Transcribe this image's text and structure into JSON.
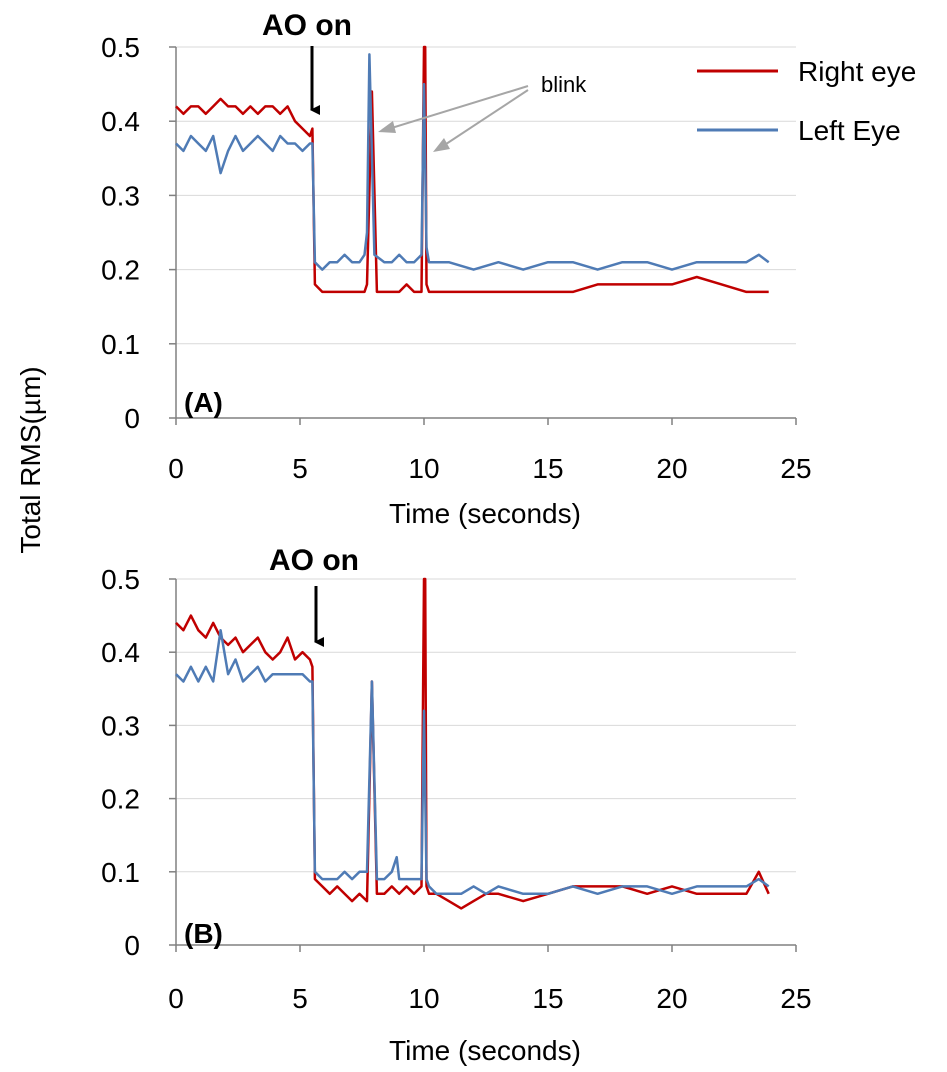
{
  "y_axis_title": "Total RMS(µm)",
  "legend": {
    "position": "top-right",
    "items": [
      {
        "label": "Right eye",
        "color": "#C00000"
      },
      {
        "label": "Left Eye",
        "color": "#4F7BB5"
      }
    ]
  },
  "chart_data": [
    {
      "type": "line",
      "panel_label": "(A)",
      "annotation": "AO on",
      "annotation_x": 5.5,
      "blink_label": "blink",
      "blink_x": [
        7.9,
        10.1
      ],
      "xlabel": "Time (seconds)",
      "xlim": [
        0,
        25
      ],
      "ylim": [
        0,
        0.5
      ],
      "xticks": [
        "0",
        "5",
        "10",
        "15",
        "20",
        "25"
      ],
      "yticks": [
        "0",
        "0.1",
        "0.2",
        "0.3",
        "0.4",
        "0.5"
      ],
      "grid": "horizontal",
      "series": [
        {
          "name": "Right eye",
          "color": "#C00000",
          "x": [
            0,
            0.3,
            0.6,
            0.9,
            1.2,
            1.5,
            1.8,
            2.1,
            2.4,
            2.7,
            3.0,
            3.3,
            3.6,
            3.9,
            4.2,
            4.5,
            4.8,
            5.1,
            5.4,
            5.5,
            5.6,
            5.9,
            6.2,
            6.5,
            6.8,
            7.1,
            7.4,
            7.6,
            7.7,
            7.9,
            8.1,
            8.4,
            8.7,
            9.0,
            9.3,
            9.6,
            9.9,
            10.0,
            10.05,
            10.1,
            10.2,
            10.5,
            11,
            12,
            13,
            14,
            15,
            16,
            17,
            18,
            19,
            20,
            21,
            22,
            23,
            23.5,
            23.9
          ],
          "y": [
            0.42,
            0.41,
            0.42,
            0.42,
            0.41,
            0.42,
            0.43,
            0.42,
            0.42,
            0.41,
            0.42,
            0.41,
            0.42,
            0.42,
            0.41,
            0.42,
            0.4,
            0.39,
            0.38,
            0.39,
            0.18,
            0.17,
            0.17,
            0.17,
            0.17,
            0.17,
            0.17,
            0.17,
            0.18,
            0.44,
            0.17,
            0.17,
            0.17,
            0.17,
            0.18,
            0.17,
            0.17,
            0.5,
            0.5,
            0.18,
            0.17,
            0.17,
            0.17,
            0.17,
            0.17,
            0.17,
            0.17,
            0.17,
            0.18,
            0.18,
            0.18,
            0.18,
            0.19,
            0.18,
            0.17,
            0.17,
            0.17
          ]
        },
        {
          "name": "Left Eye",
          "color": "#4F7BB5",
          "x": [
            0,
            0.3,
            0.6,
            0.9,
            1.2,
            1.5,
            1.8,
            2.1,
            2.4,
            2.7,
            3.0,
            3.3,
            3.6,
            3.9,
            4.2,
            4.5,
            4.8,
            5.1,
            5.4,
            5.5,
            5.6,
            5.9,
            6.2,
            6.5,
            6.8,
            7.1,
            7.4,
            7.6,
            7.7,
            7.8,
            8.0,
            8.4,
            8.7,
            9.0,
            9.3,
            9.6,
            9.9,
            10.0,
            10.1,
            10.2,
            10.5,
            11,
            12,
            13,
            14,
            15,
            16,
            17,
            18,
            19,
            20,
            21,
            22,
            23,
            23.5,
            23.9
          ],
          "y": [
            0.37,
            0.36,
            0.38,
            0.37,
            0.36,
            0.38,
            0.33,
            0.36,
            0.38,
            0.36,
            0.37,
            0.38,
            0.37,
            0.36,
            0.38,
            0.37,
            0.37,
            0.36,
            0.37,
            0.37,
            0.21,
            0.2,
            0.21,
            0.21,
            0.22,
            0.21,
            0.21,
            0.22,
            0.25,
            0.49,
            0.22,
            0.21,
            0.21,
            0.22,
            0.21,
            0.21,
            0.22,
            0.45,
            0.23,
            0.21,
            0.21,
            0.21,
            0.2,
            0.21,
            0.2,
            0.21,
            0.21,
            0.2,
            0.21,
            0.21,
            0.2,
            0.21,
            0.21,
            0.21,
            0.22,
            0.21
          ]
        }
      ]
    },
    {
      "type": "line",
      "panel_label": "(B)",
      "annotation": "AO on",
      "annotation_x": 5.6,
      "xlabel": "Time (seconds)",
      "xlim": [
        0,
        25
      ],
      "ylim": [
        0,
        0.5
      ],
      "xticks": [
        "0",
        "5",
        "10",
        "15",
        "20",
        "25"
      ],
      "yticks": [
        "0",
        "0.1",
        "0.2",
        "0.3",
        "0.4",
        "0.5"
      ],
      "grid": "horizontal",
      "series": [
        {
          "name": "Right eye",
          "color": "#C00000",
          "x": [
            0,
            0.3,
            0.6,
            0.9,
            1.2,
            1.5,
            1.8,
            2.1,
            2.4,
            2.7,
            3.0,
            3.3,
            3.6,
            3.9,
            4.2,
            4.5,
            4.8,
            5.1,
            5.4,
            5.5,
            5.6,
            5.9,
            6.2,
            6.5,
            6.8,
            7.1,
            7.4,
            7.7,
            7.9,
            8.1,
            8.4,
            8.7,
            9.0,
            9.3,
            9.6,
            9.9,
            10.0,
            10.05,
            10.1,
            10.2,
            10.5,
            11,
            11.5,
            12,
            12.5,
            13,
            14,
            15,
            16,
            17,
            18,
            19,
            20,
            21,
            22,
            23,
            23.5,
            23.9
          ],
          "y": [
            0.44,
            0.43,
            0.45,
            0.43,
            0.42,
            0.44,
            0.42,
            0.41,
            0.42,
            0.4,
            0.41,
            0.42,
            0.4,
            0.39,
            0.4,
            0.42,
            0.39,
            0.4,
            0.39,
            0.38,
            0.09,
            0.08,
            0.07,
            0.08,
            0.07,
            0.06,
            0.07,
            0.06,
            0.36,
            0.07,
            0.07,
            0.08,
            0.07,
            0.08,
            0.07,
            0.08,
            0.5,
            0.5,
            0.08,
            0.07,
            0.07,
            0.06,
            0.05,
            0.06,
            0.07,
            0.07,
            0.06,
            0.07,
            0.08,
            0.08,
            0.08,
            0.07,
            0.08,
            0.07,
            0.07,
            0.07,
            0.1,
            0.07
          ]
        },
        {
          "name": "Left Eye",
          "color": "#4F7BB5",
          "x": [
            0,
            0.3,
            0.6,
            0.9,
            1.2,
            1.5,
            1.8,
            2.1,
            2.4,
            2.7,
            3.0,
            3.3,
            3.6,
            3.9,
            4.2,
            4.5,
            4.8,
            5.1,
            5.4,
            5.5,
            5.6,
            5.9,
            6.2,
            6.5,
            6.8,
            7.1,
            7.4,
            7.7,
            7.9,
            8.1,
            8.4,
            8.7,
            8.9,
            9.0,
            9.3,
            9.6,
            9.9,
            10.0,
            10.1,
            10.2,
            10.5,
            11,
            11.5,
            12,
            12.5,
            13,
            14,
            15,
            16,
            17,
            18,
            19,
            20,
            21,
            22,
            23,
            23.5,
            23.9
          ],
          "y": [
            0.37,
            0.36,
            0.38,
            0.36,
            0.38,
            0.36,
            0.43,
            0.37,
            0.39,
            0.36,
            0.37,
            0.38,
            0.36,
            0.37,
            0.37,
            0.37,
            0.37,
            0.37,
            0.36,
            0.36,
            0.1,
            0.09,
            0.09,
            0.09,
            0.1,
            0.09,
            0.1,
            0.1,
            0.36,
            0.09,
            0.09,
            0.1,
            0.12,
            0.09,
            0.09,
            0.09,
            0.09,
            0.32,
            0.09,
            0.08,
            0.07,
            0.07,
            0.07,
            0.08,
            0.07,
            0.08,
            0.07,
            0.07,
            0.08,
            0.07,
            0.08,
            0.08,
            0.07,
            0.08,
            0.08,
            0.08,
            0.09,
            0.08
          ]
        }
      ]
    }
  ]
}
